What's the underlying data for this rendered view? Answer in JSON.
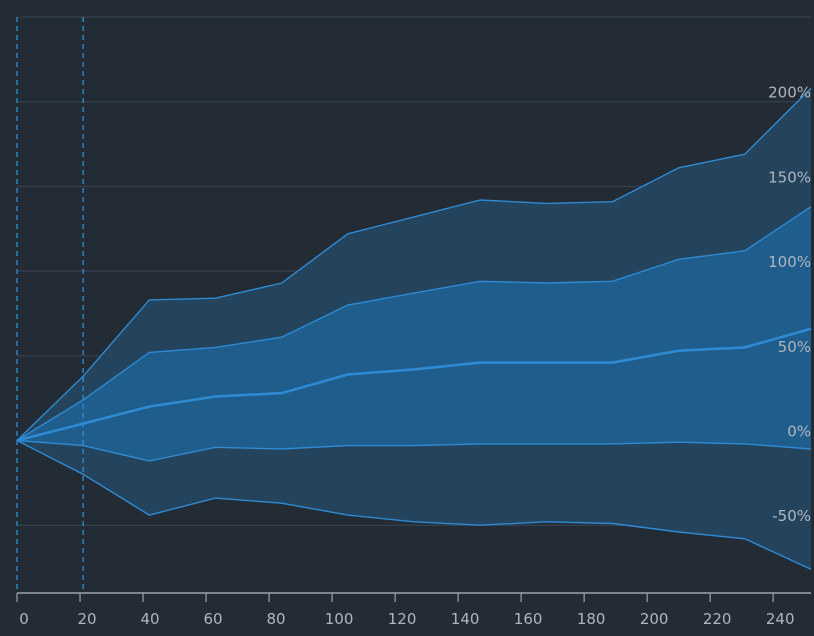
{
  "chart_data": {
    "type": "area",
    "x": [
      0,
      21,
      42,
      63,
      84,
      105,
      126,
      147,
      168,
      189,
      210,
      231,
      252
    ],
    "series": [
      {
        "values": [
          0,
          38,
          83,
          84,
          93,
          122,
          132,
          142,
          140,
          141,
          161,
          169,
          208
        ]
      },
      {
        "values": [
          0,
          24,
          52,
          55,
          61,
          80,
          87,
          94,
          93,
          94,
          107,
          112,
          138
        ]
      },
      {
        "values": [
          0,
          10,
          20,
          26,
          28,
          39,
          42,
          46,
          46,
          46,
          53,
          55,
          66
        ]
      },
      {
        "values": [
          0,
          -3,
          -12,
          -4,
          -5,
          -3,
          -3,
          -2,
          -2,
          -2,
          -1,
          -2,
          -5
        ]
      },
      {
        "values": [
          0,
          -20,
          -44,
          -34,
          -37,
          -44,
          -48,
          -50,
          -48,
          -49,
          -54,
          -58,
          -76
        ]
      }
    ],
    "x_ticks": [
      "0",
      "20",
      "40",
      "60",
      "80",
      "100",
      "120",
      "140",
      "160",
      "180",
      "200",
      "220",
      "240"
    ],
    "y_ticks": [
      "-50%",
      "0%",
      "50%",
      "100%",
      "150%",
      "200%"
    ],
    "xlim": [
      0,
      252
    ],
    "ylim": [
      -90,
      250
    ],
    "vertical_markers": [
      0,
      21
    ],
    "grid": true,
    "colors": {
      "background": "#232b35",
      "outer_band": "#24445e",
      "inner_band": "#1f5d8c",
      "line": "#2e8ad3",
      "grid": "#3a4654",
      "tick_text": "#aeb6bf"
    }
  }
}
